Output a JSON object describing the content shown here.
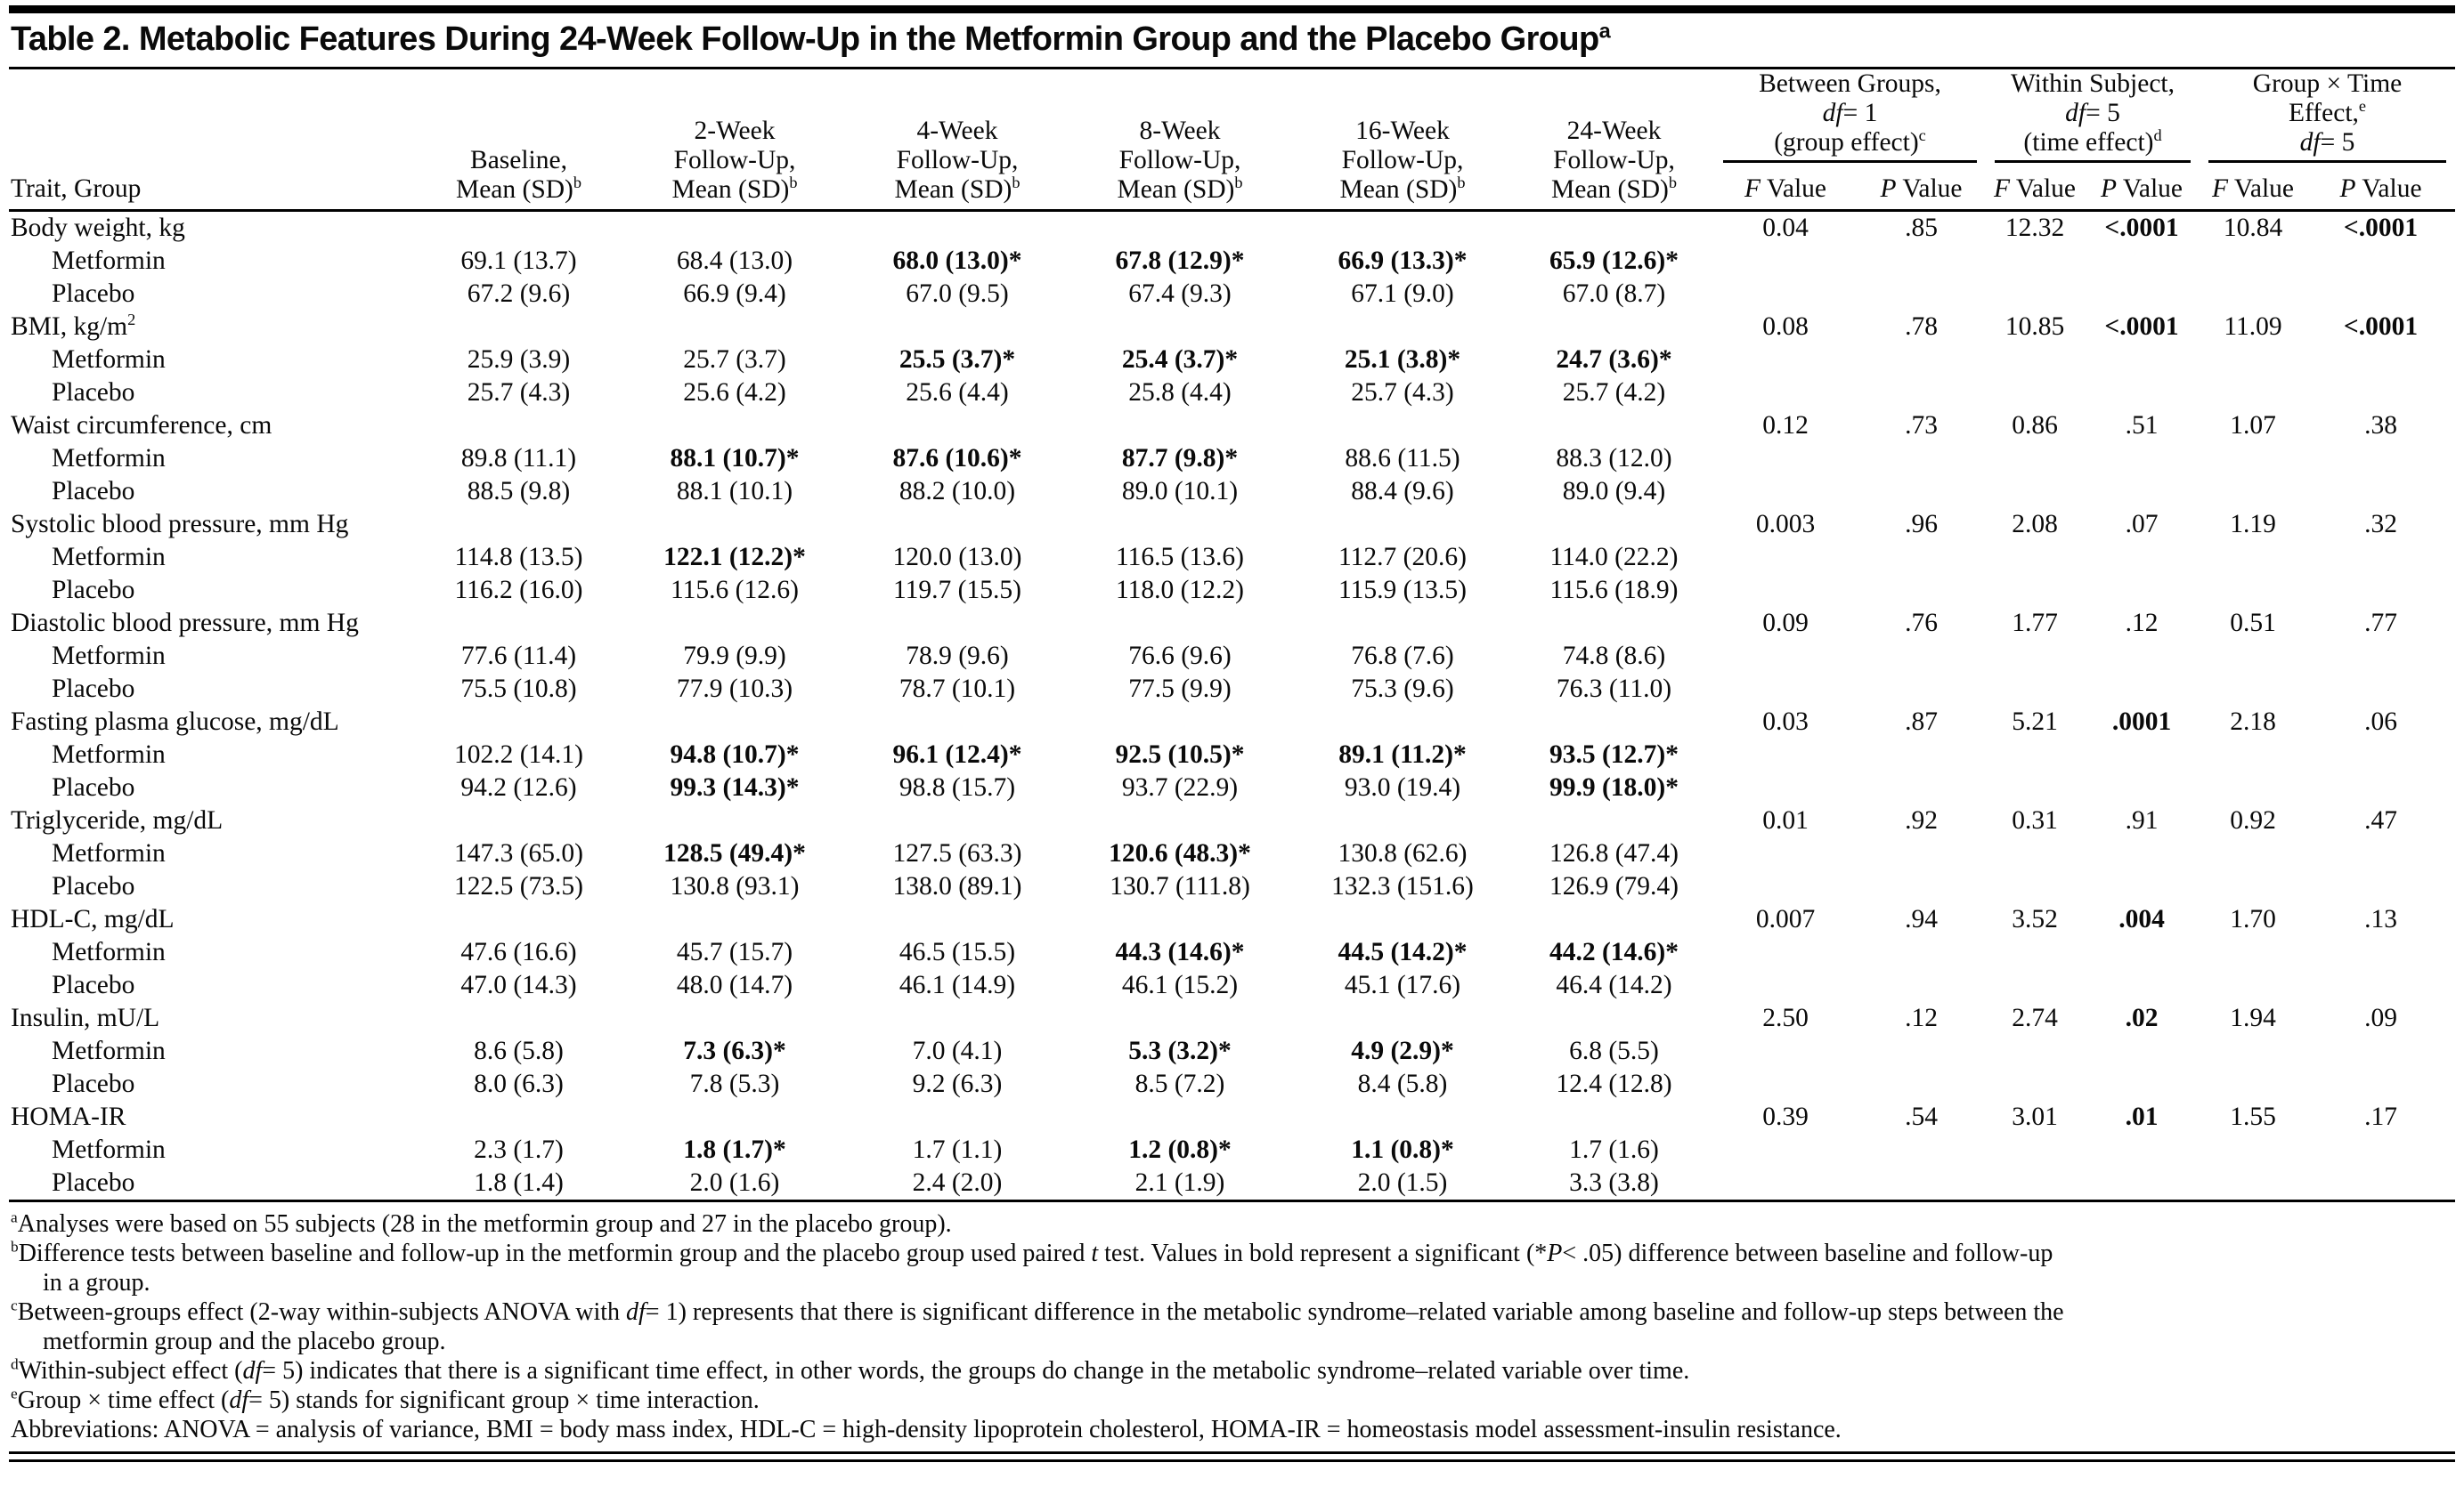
{
  "title": {
    "text": "Table 2. Metabolic Features During 24-Week Follow-Up in the Metformin Group and the Placebo Group",
    "sup": "a"
  },
  "header": {
    "trait_col": "Trait, Group",
    "mean_cols": [
      {
        "lines": [
          "Baseline,",
          "Mean (SD)"
        ],
        "sup": "b"
      },
      {
        "lines": [
          "2-Week",
          "Follow-Up,",
          "Mean (SD)"
        ],
        "sup": "b"
      },
      {
        "lines": [
          "4-Week",
          "Follow-Up,",
          "Mean (SD)"
        ],
        "sup": "b"
      },
      {
        "lines": [
          "8-Week",
          "Follow-Up,",
          "Mean (SD)"
        ],
        "sup": "b"
      },
      {
        "lines": [
          "16-Week",
          "Follow-Up,",
          "Mean (SD)"
        ],
        "sup": "b"
      },
      {
        "lines": [
          "24-Week",
          "Follow-Up,",
          "Mean (SD)"
        ],
        "sup": "b"
      }
    ],
    "stat_groups": [
      {
        "lines": [
          [
            {
              "t": "text",
              "v": "Between Groups,"
            }
          ],
          [
            {
              "t": "i",
              "v": "df"
            },
            {
              "t": "text",
              "v": "= 1"
            }
          ],
          [
            {
              "t": "text",
              "v": "(group effect)"
            },
            {
              "t": "sup",
              "v": "c"
            }
          ]
        ]
      },
      {
        "lines": [
          [
            {
              "t": "text",
              "v": "Within Subject,"
            }
          ],
          [
            {
              "t": "i",
              "v": "df"
            },
            {
              "t": "text",
              "v": "= 5"
            }
          ],
          [
            {
              "t": "text",
              "v": "(time effect)"
            },
            {
              "t": "sup",
              "v": "d"
            }
          ]
        ]
      },
      {
        "lines": [
          [
            {
              "t": "text",
              "v": "Group × Time"
            }
          ],
          [
            {
              "t": "text",
              "v": "Effect,"
            },
            {
              "t": "sup",
              "v": "e"
            }
          ],
          [
            {
              "t": "i",
              "v": "df"
            },
            {
              "t": "text",
              "v": "= 5"
            }
          ]
        ]
      }
    ],
    "f_label": [
      {
        "t": "i",
        "v": "F"
      },
      {
        "t": "text",
        "v": " Value"
      }
    ],
    "p_label": [
      {
        "t": "i",
        "v": "P"
      },
      {
        "t": "text",
        "v": " Value"
      }
    ]
  },
  "group_labels": {
    "metformin": "Metformin",
    "placebo": "Placebo"
  },
  "rows": [
    {
      "trait": [
        {
          "t": "text",
          "v": "Body weight, kg"
        }
      ],
      "stats": [
        "0.04",
        ".85",
        "12.32",
        "<.0001",
        "10.84",
        "<.0001"
      ],
      "stats_bold": [
        false,
        false,
        false,
        true,
        false,
        true
      ],
      "metformin": [
        {
          "v": "69.1 (13.7)",
          "b": false
        },
        {
          "v": "68.4 (13.0)",
          "b": false
        },
        {
          "v": "68.0 (13.0)*",
          "b": true
        },
        {
          "v": "67.8 (12.9)*",
          "b": true
        },
        {
          "v": "66.9 (13.3)*",
          "b": true
        },
        {
          "v": "65.9 (12.6)*",
          "b": true
        }
      ],
      "placebo": [
        {
          "v": "67.2 (9.6)",
          "b": false
        },
        {
          "v": "66.9 (9.4)",
          "b": false
        },
        {
          "v": "67.0 (9.5)",
          "b": false
        },
        {
          "v": "67.4 (9.3)",
          "b": false
        },
        {
          "v": "67.1 (9.0)",
          "b": false
        },
        {
          "v": "67.0 (8.7)",
          "b": false
        }
      ]
    },
    {
      "trait": [
        {
          "t": "text",
          "v": "BMI, kg/m"
        },
        {
          "t": "sup",
          "v": "2"
        }
      ],
      "stats": [
        "0.08",
        ".78",
        "10.85",
        "<.0001",
        "11.09",
        "<.0001"
      ],
      "stats_bold": [
        false,
        false,
        false,
        true,
        false,
        true
      ],
      "metformin": [
        {
          "v": "25.9 (3.9)",
          "b": false
        },
        {
          "v": "25.7 (3.7)",
          "b": false
        },
        {
          "v": "25.5 (3.7)*",
          "b": true
        },
        {
          "v": "25.4 (3.7)*",
          "b": true
        },
        {
          "v": "25.1 (3.8)*",
          "b": true
        },
        {
          "v": "24.7 (3.6)*",
          "b": true
        }
      ],
      "placebo": [
        {
          "v": "25.7 (4.3)",
          "b": false
        },
        {
          "v": "25.6 (4.2)",
          "b": false
        },
        {
          "v": "25.6 (4.4)",
          "b": false
        },
        {
          "v": "25.8 (4.4)",
          "b": false
        },
        {
          "v": "25.7 (4.3)",
          "b": false
        },
        {
          "v": "25.7 (4.2)",
          "b": false
        }
      ]
    },
    {
      "trait": [
        {
          "t": "text",
          "v": "Waist circumference, cm"
        }
      ],
      "stats": [
        "0.12",
        ".73",
        "0.86",
        ".51",
        "1.07",
        ".38"
      ],
      "stats_bold": [
        false,
        false,
        false,
        false,
        false,
        false
      ],
      "metformin": [
        {
          "v": "89.8 (11.1)",
          "b": false
        },
        {
          "v": "88.1 (10.7)*",
          "b": true
        },
        {
          "v": "87.6 (10.6)*",
          "b": true
        },
        {
          "v": "87.7 (9.8)*",
          "b": true
        },
        {
          "v": "88.6 (11.5)",
          "b": false
        },
        {
          "v": "88.3 (12.0)",
          "b": false
        }
      ],
      "placebo": [
        {
          "v": "88.5 (9.8)",
          "b": false
        },
        {
          "v": "88.1 (10.1)",
          "b": false
        },
        {
          "v": "88.2 (10.0)",
          "b": false
        },
        {
          "v": "89.0 (10.1)",
          "b": false
        },
        {
          "v": "88.4 (9.6)",
          "b": false
        },
        {
          "v": "89.0 (9.4)",
          "b": false
        }
      ]
    },
    {
      "trait": [
        {
          "t": "text",
          "v": "Systolic blood pressure, mm Hg"
        }
      ],
      "stats": [
        "0.003",
        ".96",
        "2.08",
        ".07",
        "1.19",
        ".32"
      ],
      "stats_bold": [
        false,
        false,
        false,
        false,
        false,
        false
      ],
      "metformin": [
        {
          "v": "114.8 (13.5)",
          "b": false
        },
        {
          "v": "122.1 (12.2)*",
          "b": true
        },
        {
          "v": "120.0 (13.0)",
          "b": false
        },
        {
          "v": "116.5 (13.6)",
          "b": false
        },
        {
          "v": "112.7 (20.6)",
          "b": false
        },
        {
          "v": "114.0 (22.2)",
          "b": false
        }
      ],
      "placebo": [
        {
          "v": "116.2 (16.0)",
          "b": false
        },
        {
          "v": "115.6 (12.6)",
          "b": false
        },
        {
          "v": "119.7 (15.5)",
          "b": false
        },
        {
          "v": "118.0 (12.2)",
          "b": false
        },
        {
          "v": "115.9 (13.5)",
          "b": false
        },
        {
          "v": "115.6 (18.9)",
          "b": false
        }
      ]
    },
    {
      "trait": [
        {
          "t": "text",
          "v": "Diastolic blood pressure, mm Hg"
        }
      ],
      "stats": [
        "0.09",
        ".76",
        "1.77",
        ".12",
        "0.51",
        ".77"
      ],
      "stats_bold": [
        false,
        false,
        false,
        false,
        false,
        false
      ],
      "metformin": [
        {
          "v": "77.6 (11.4)",
          "b": false
        },
        {
          "v": "79.9 (9.9)",
          "b": false
        },
        {
          "v": "78.9 (9.6)",
          "b": false
        },
        {
          "v": "76.6 (9.6)",
          "b": false
        },
        {
          "v": "76.8 (7.6)",
          "b": false
        },
        {
          "v": "74.8 (8.6)",
          "b": false
        }
      ],
      "placebo": [
        {
          "v": "75.5 (10.8)",
          "b": false
        },
        {
          "v": "77.9 (10.3)",
          "b": false
        },
        {
          "v": "78.7 (10.1)",
          "b": false
        },
        {
          "v": "77.5 (9.9)",
          "b": false
        },
        {
          "v": "75.3 (9.6)",
          "b": false
        },
        {
          "v": "76.3 (11.0)",
          "b": false
        }
      ]
    },
    {
      "trait": [
        {
          "t": "text",
          "v": "Fasting plasma glucose, mg/dL"
        }
      ],
      "stats": [
        "0.03",
        ".87",
        "5.21",
        ".0001",
        "2.18",
        ".06"
      ],
      "stats_bold": [
        false,
        false,
        false,
        true,
        false,
        false
      ],
      "metformin": [
        {
          "v": "102.2 (14.1)",
          "b": false
        },
        {
          "v": "94.8 (10.7)*",
          "b": true
        },
        {
          "v": "96.1 (12.4)*",
          "b": true
        },
        {
          "v": "92.5 (10.5)*",
          "b": true
        },
        {
          "v": "89.1 (11.2)*",
          "b": true
        },
        {
          "v": "93.5 (12.7)*",
          "b": true
        }
      ],
      "placebo": [
        {
          "v": "94.2 (12.6)",
          "b": false
        },
        {
          "v": "99.3 (14.3)*",
          "b": true
        },
        {
          "v": "98.8 (15.7)",
          "b": false
        },
        {
          "v": "93.7 (22.9)",
          "b": false
        },
        {
          "v": "93.0 (19.4)",
          "b": false
        },
        {
          "v": "99.9 (18.0)*",
          "b": true
        }
      ]
    },
    {
      "trait": [
        {
          "t": "text",
          "v": "Triglyceride, mg/dL"
        }
      ],
      "stats": [
        "0.01",
        ".92",
        "0.31",
        ".91",
        "0.92",
        ".47"
      ],
      "stats_bold": [
        false,
        false,
        false,
        false,
        false,
        false
      ],
      "metformin": [
        {
          "v": "147.3 (65.0)",
          "b": false
        },
        {
          "v": "128.5 (49.4)*",
          "b": true
        },
        {
          "v": "127.5 (63.3)",
          "b": false
        },
        {
          "v": "120.6 (48.3)*",
          "b": true
        },
        {
          "v": "130.8 (62.6)",
          "b": false
        },
        {
          "v": "126.8 (47.4)",
          "b": false
        }
      ],
      "placebo": [
        {
          "v": "122.5 (73.5)",
          "b": false
        },
        {
          "v": "130.8 (93.1)",
          "b": false
        },
        {
          "v": "138.0 (89.1)",
          "b": false
        },
        {
          "v": "130.7 (111.8)",
          "b": false
        },
        {
          "v": "132.3 (151.6)",
          "b": false
        },
        {
          "v": "126.9 (79.4)",
          "b": false
        }
      ]
    },
    {
      "trait": [
        {
          "t": "text",
          "v": "HDL-C, mg/dL"
        }
      ],
      "stats": [
        "0.007",
        ".94",
        "3.52",
        ".004",
        "1.70",
        ".13"
      ],
      "stats_bold": [
        false,
        false,
        false,
        true,
        false,
        false
      ],
      "metformin": [
        {
          "v": "47.6 (16.6)",
          "b": false
        },
        {
          "v": "45.7 (15.7)",
          "b": false
        },
        {
          "v": "46.5 (15.5)",
          "b": false
        },
        {
          "v": "44.3 (14.6)*",
          "b": true
        },
        {
          "v": "44.5 (14.2)*",
          "b": true
        },
        {
          "v": "44.2 (14.6)*",
          "b": true
        }
      ],
      "placebo": [
        {
          "v": "47.0 (14.3)",
          "b": false
        },
        {
          "v": "48.0 (14.7)",
          "b": false
        },
        {
          "v": "46.1 (14.9)",
          "b": false
        },
        {
          "v": "46.1 (15.2)",
          "b": false
        },
        {
          "v": "45.1 (17.6)",
          "b": false
        },
        {
          "v": "46.4 (14.2)",
          "b": false
        }
      ]
    },
    {
      "trait": [
        {
          "t": "text",
          "v": "Insulin, mU/L"
        }
      ],
      "stats": [
        "2.50",
        ".12",
        "2.74",
        ".02",
        "1.94",
        ".09"
      ],
      "stats_bold": [
        false,
        false,
        false,
        true,
        false,
        false
      ],
      "metformin": [
        {
          "v": "8.6 (5.8)",
          "b": false
        },
        {
          "v": "7.3 (6.3)*",
          "b": true
        },
        {
          "v": "7.0 (4.1)",
          "b": false
        },
        {
          "v": "5.3 (3.2)*",
          "b": true
        },
        {
          "v": "4.9 (2.9)*",
          "b": true
        },
        {
          "v": "6.8 (5.5)",
          "b": false
        }
      ],
      "placebo": [
        {
          "v": "8.0 (6.3)",
          "b": false
        },
        {
          "v": "7.8 (5.3)",
          "b": false
        },
        {
          "v": "9.2 (6.3)",
          "b": false
        },
        {
          "v": "8.5 (7.2)",
          "b": false
        },
        {
          "v": "8.4 (5.8)",
          "b": false
        },
        {
          "v": "12.4 (12.8)",
          "b": false
        }
      ]
    },
    {
      "trait": [
        {
          "t": "text",
          "v": "HOMA-IR"
        }
      ],
      "stats": [
        "0.39",
        ".54",
        "3.01",
        ".01",
        "1.55",
        ".17"
      ],
      "stats_bold": [
        false,
        false,
        false,
        true,
        false,
        false
      ],
      "metformin": [
        {
          "v": "2.3 (1.7)",
          "b": false
        },
        {
          "v": "1.8 (1.7)*",
          "b": true
        },
        {
          "v": "1.7 (1.1)",
          "b": false
        },
        {
          "v": "1.2 (0.8)*",
          "b": true
        },
        {
          "v": "1.1 (0.8)*",
          "b": true
        },
        {
          "v": "1.7 (1.6)",
          "b": false
        }
      ],
      "placebo": [
        {
          "v": "1.8 (1.4)",
          "b": false
        },
        {
          "v": "2.0 (1.6)",
          "b": false
        },
        {
          "v": "2.4 (2.0)",
          "b": false
        },
        {
          "v": "2.1 (1.9)",
          "b": false
        },
        {
          "v": "2.0 (1.5)",
          "b": false
        },
        {
          "v": "3.3 (3.8)",
          "b": false
        }
      ]
    }
  ],
  "footnotes": [
    {
      "indent": false,
      "seg": [
        {
          "t": "sup",
          "v": "a"
        },
        {
          "t": "text",
          "v": "Analyses were based on 55 subjects (28 in the metformin group and 27 in the placebo group)."
        }
      ]
    },
    {
      "indent": false,
      "seg": [
        {
          "t": "sup",
          "v": "b"
        },
        {
          "t": "text",
          "v": "Difference tests between baseline and follow-up in the metformin group and the placebo group used paired "
        },
        {
          "t": "i",
          "v": "t"
        },
        {
          "t": "text",
          "v": " test. Values in bold represent a significant (*"
        },
        {
          "t": "i",
          "v": "P"
        },
        {
          "t": "text",
          "v": "< .05) difference between baseline and follow-up"
        }
      ]
    },
    {
      "indent": true,
      "seg": [
        {
          "t": "text",
          "v": "in a group."
        }
      ]
    },
    {
      "indent": false,
      "seg": [
        {
          "t": "sup",
          "v": "c"
        },
        {
          "t": "text",
          "v": "Between-groups effect (2-way within-subjects ANOVA with "
        },
        {
          "t": "i",
          "v": "df"
        },
        {
          "t": "text",
          "v": "= 1) represents that there is significant difference in the metabolic syndrome–related variable among baseline and follow-up steps between the"
        }
      ]
    },
    {
      "indent": true,
      "seg": [
        {
          "t": "text",
          "v": "metformin group and the placebo group."
        }
      ]
    },
    {
      "indent": false,
      "seg": [
        {
          "t": "sup",
          "v": "d"
        },
        {
          "t": "text",
          "v": "Within-subject effect ("
        },
        {
          "t": "i",
          "v": "df"
        },
        {
          "t": "text",
          "v": "= 5) indicates that there is a significant time effect, in other words, the groups do change in the metabolic syndrome–related variable over time."
        }
      ]
    },
    {
      "indent": false,
      "seg": [
        {
          "t": "sup",
          "v": "e"
        },
        {
          "t": "text",
          "v": "Group × time effect ("
        },
        {
          "t": "i",
          "v": "df"
        },
        {
          "t": "text",
          "v": "= 5) stands for significant group × time interaction."
        }
      ]
    },
    {
      "indent": false,
      "seg": [
        {
          "t": "text",
          "v": "Abbreviations: ANOVA = analysis of variance, BMI = body mass index, HDL-C = high-density lipoprotein cholesterol, HOMA-IR = homeostasis model assessment-insulin resistance."
        }
      ]
    }
  ],
  "colors": {
    "text": "#0a0a0a",
    "rule": "#000000",
    "background": "#ffffff"
  }
}
